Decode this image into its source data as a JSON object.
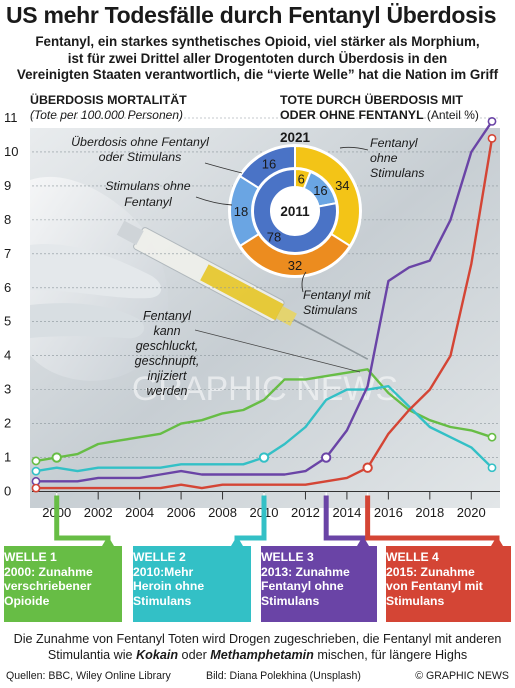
{
  "header": {
    "title": "US mehr Todesfälle durch Fentanyl Überdosis",
    "subtitle_lines": [
      "Fentanyl, ein starkes synthetisches Opioid, viel stärker als Morphium,",
      "ist für zwei Drittel aller Drogentoten durch Überdosis in den",
      "Vereinigten Staaten verantwortlich, die “vierte Welle” hat die Nation im Griff"
    ]
  },
  "left_panel": {
    "title": "ÜBERDOSIS MORTALITÄT",
    "note": "(Tote per 100.000 Personen)"
  },
  "right_panel": {
    "title_line1": "TOTE DURCH ÜBERDOSIS MIT",
    "title_line2": "ODER OHNE FENTANYL",
    "note": "(Anteil %)"
  },
  "photo_caption": [
    "Fentanyl",
    "kann",
    "geschluckt,",
    "geschnupft,",
    "injiziert",
    "werden"
  ],
  "watermark": "GRAPHIC NEWS",
  "colors": {
    "wave1": "#67bd45",
    "wave2": "#33c0c6",
    "wave3": "#6a44a6",
    "wave4": "#d44535",
    "ring_yellow": "#f3c417",
    "ring_orange": "#ec8c1f",
    "ring_blue_dark": "#4a73c6",
    "ring_blue_light": "#6aa5e3"
  },
  "chart_data": [
    {
      "type": "line",
      "title": "ÜBERDOSIS MORTALITÄT",
      "ylabel": "(Tote per 100.000 Personen)",
      "xlim": [
        1999,
        2021
      ],
      "ylim": [
        0,
        11
      ],
      "x_ticks": [
        "2000",
        "2002",
        "2004",
        "2006",
        "2008",
        "2010",
        "2012",
        "2014",
        "2016",
        "2018",
        "2020"
      ],
      "y_ticks": [
        "0",
        "1",
        "2",
        "3",
        "4",
        "5",
        "6",
        "7",
        "8",
        "9",
        "10",
        "11"
      ],
      "grid": true,
      "series": [
        {
          "name": "WELLE 1",
          "color": "#67bd45",
          "x": [
            1999,
            2000,
            2001,
            2002,
            2003,
            2004,
            2005,
            2006,
            2007,
            2008,
            2009,
            2010,
            2011,
            2012,
            2013,
            2014,
            2015,
            2016,
            2017,
            2018,
            2019,
            2020,
            2021
          ],
          "values": [
            0.9,
            1.0,
            1.1,
            1.4,
            1.5,
            1.6,
            1.7,
            2.0,
            2.1,
            2.3,
            2.4,
            2.7,
            3.3,
            3.3,
            3.4,
            3.5,
            3.6,
            2.9,
            2.4,
            2.1,
            1.9,
            1.8,
            1.6
          ]
        },
        {
          "name": "WELLE 2",
          "color": "#33c0c6",
          "x": [
            1999,
            2000,
            2001,
            2002,
            2003,
            2004,
            2005,
            2006,
            2007,
            2008,
            2009,
            2010,
            2011,
            2012,
            2013,
            2014,
            2015,
            2016,
            2017,
            2018,
            2019,
            2020,
            2021
          ],
          "values": [
            0.6,
            0.7,
            0.6,
            0.7,
            0.7,
            0.7,
            0.7,
            0.8,
            0.8,
            0.8,
            0.8,
            1.0,
            1.4,
            1.9,
            2.7,
            3.0,
            3.0,
            3.1,
            2.5,
            1.9,
            1.6,
            1.3,
            0.7
          ]
        },
        {
          "name": "WELLE 3",
          "color": "#6a44a6",
          "x": [
            1999,
            2000,
            2001,
            2002,
            2003,
            2004,
            2005,
            2006,
            2007,
            2008,
            2009,
            2010,
            2011,
            2012,
            2013,
            2014,
            2015,
            2016,
            2017,
            2018,
            2019,
            2020,
            2021
          ],
          "values": [
            0.3,
            0.3,
            0.3,
            0.4,
            0.4,
            0.4,
            0.5,
            0.6,
            0.5,
            0.5,
            0.5,
            0.5,
            0.5,
            0.6,
            1.0,
            1.8,
            3.1,
            6.2,
            6.6,
            6.8,
            8.0,
            10.0,
            10.9
          ]
        },
        {
          "name": "WELLE 4",
          "color": "#d44535",
          "x": [
            1999,
            2000,
            2001,
            2002,
            2003,
            2004,
            2005,
            2006,
            2007,
            2008,
            2009,
            2010,
            2011,
            2012,
            2013,
            2014,
            2015,
            2016,
            2017,
            2018,
            2019,
            2020,
            2021
          ],
          "values": [
            0.1,
            0.1,
            0.1,
            0.1,
            0.1,
            0.1,
            0.1,
            0.2,
            0.1,
            0.2,
            0.2,
            0.2,
            0.2,
            0.2,
            0.3,
            0.4,
            0.7,
            1.7,
            2.4,
            3.0,
            4.0,
            6.7,
            10.4
          ]
        }
      ],
      "wave_start_years": [
        2000,
        2010,
        2013,
        2015
      ]
    },
    {
      "type": "pie",
      "title": "TOTE DURCH ÜBERDOSIS MIT ODER OHNE FENTANYL",
      "note": "(Anteil %)",
      "rings": [
        {
          "label": "2021",
          "position": "outer",
          "slices": [
            {
              "label": "Fentanyl ohne Stimulans",
              "value": 34,
              "color": "#f3c417"
            },
            {
              "label": "Fentanyl mit Stimulans",
              "value": 32,
              "color": "#ec8c1f"
            },
            {
              "label": "Stimulans ohne Fentanyl",
              "value": 18,
              "color": "#6aa5e3"
            },
            {
              "label": "Überdosis ohne Fentanyl oder Stimulans",
              "value": 16,
              "color": "#4a73c6"
            }
          ]
        },
        {
          "label": "2011",
          "position": "inner",
          "slices": [
            {
              "label": "Fentanyl ohne Stimulans",
              "value": 6,
              "color": "#f3c417"
            },
            {
              "label": "Stimulans ohne Fentanyl",
              "value": 16,
              "color": "#6aa5e3"
            },
            {
              "label": "Überdosis ohne Fentanyl oder Stimulans",
              "value": 78,
              "color": "#4a73c6"
            }
          ]
        }
      ],
      "callouts": {
        "no_fent": [
          "Überdosis ohne Fentanyl",
          "oder Stimulans"
        ],
        "stim": [
          "Stimulans ohne",
          "Fentanyl"
        ],
        "fent": [
          "Fentanyl",
          "ohne",
          "Stimulans"
        ],
        "fent_stim": [
          "Fentanyl mit",
          "Stimulans"
        ]
      }
    }
  ],
  "waves": [
    {
      "head": "WELLE 1",
      "lines": [
        "2000: Zunahme",
        "verschriebener",
        "Opioide"
      ],
      "color": "#67bd45"
    },
    {
      "head": "WELLE 2",
      "lines": [
        "2010:Mehr",
        "Heroin ohne",
        "Stimulans"
      ],
      "color": "#33c0c6"
    },
    {
      "head": "WELLE 3",
      "lines": [
        "2013: Zunahme",
        "Fentanyl ohne",
        "Stimulans"
      ],
      "color": "#6a44a6"
    },
    {
      "head": "WELLE 4",
      "lines": [
        "2015: Zunahme",
        "von Fentanyl mit",
        "Stimulans"
      ],
      "color": "#d44535"
    }
  ],
  "footnote": {
    "pre": "Die Zunahme von Fentanyl Toten wird Drogen zugeschrieben, die Fentanyl mit anderen Stimulantia wie ",
    "drug1": "Kokain",
    "mid": " oder ",
    "drug2": "Methamphetamin",
    "post": " mischen, für längere Highs"
  },
  "sources": {
    "left": "Quellen: BBC, Wiley Online Library",
    "middle": "Bild: Diana Polekhina (Unsplash)",
    "right": "© GRAPHIC NEWS"
  }
}
